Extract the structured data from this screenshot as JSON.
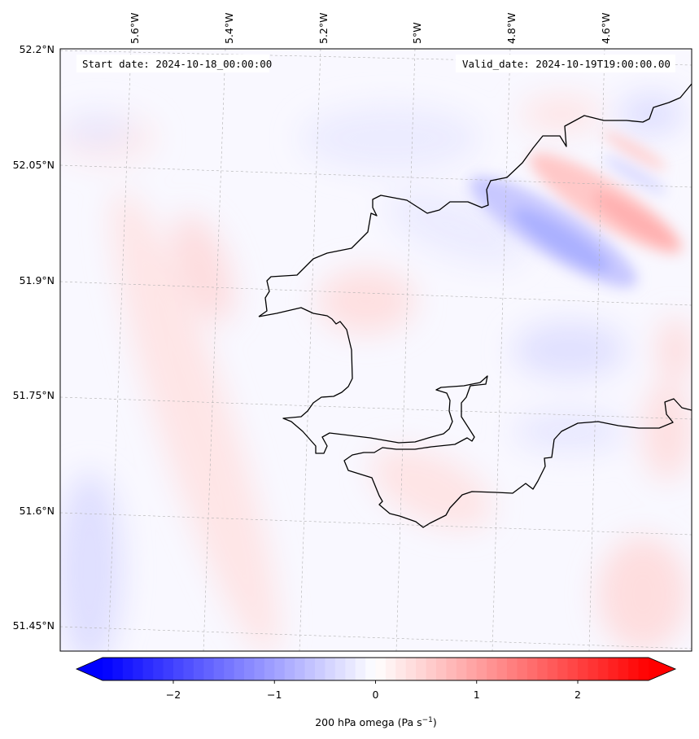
{
  "header": {
    "start_date": "Start date: 2024-10-18_00:00:00",
    "valid_date": "Valid_date: 2024-10-19T19:00:00.00"
  },
  "map": {
    "lon_labels": [
      "5.6°W",
      "5.4°W",
      "5.2°W",
      "5°W",
      "4.8°W",
      "4.6°W"
    ],
    "lat_labels": [
      "52.2°N",
      "52.05°N",
      "51.9°N",
      "51.75°N",
      "51.6°N",
      "51.45°N"
    ],
    "field": "200 hPa omega",
    "colors": {
      "negative": "#0000ff",
      "zero": "#ffffff",
      "positive": "#ff0000",
      "coast": "#000000",
      "grid": "#b0b0b0"
    }
  },
  "colorbar": {
    "ticks": [
      "−2",
      "−1",
      "0",
      "1",
      "2"
    ],
    "min": -2.7,
    "max": 2.7,
    "label_prefix": "200 hPa omega (Pa s",
    "label_exp": "−1",
    "label_suffix": ")"
  }
}
